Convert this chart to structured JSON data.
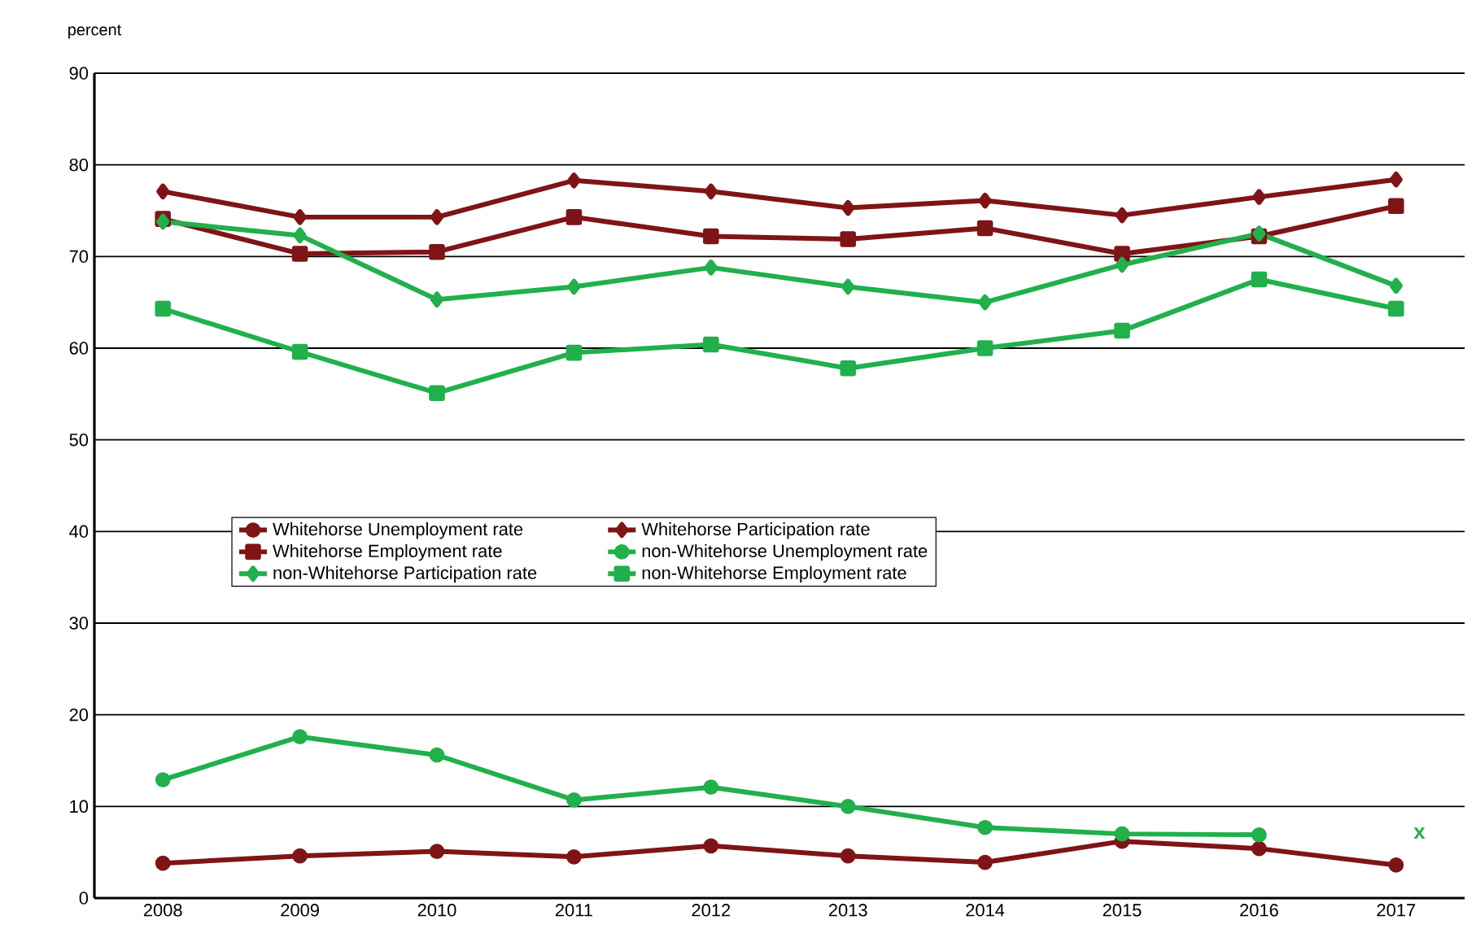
{
  "chart_data": {
    "type": "line",
    "ylabel": "percent",
    "categories": [
      "2008",
      "2009",
      "2010",
      "2011",
      "2012",
      "2013",
      "2014",
      "2015",
      "2016",
      "2017"
    ],
    "series": [
      {
        "name": "Whitehorse Unemployment rate",
        "color": "#7f1416",
        "marker": "circle",
        "values": [
          3.8,
          4.6,
          5.1,
          4.5,
          5.7,
          4.6,
          3.9,
          6.2,
          5.4,
          3.6
        ]
      },
      {
        "name": "Whitehorse Participation rate",
        "color": "#7f1416",
        "marker": "diamond",
        "values": [
          77.1,
          74.3,
          74.3,
          78.3,
          77.1,
          75.3,
          76.1,
          74.5,
          76.5,
          78.4
        ]
      },
      {
        "name": "Whitehorse Employment rate",
        "color": "#7f1416",
        "marker": "square",
        "values": [
          74.1,
          70.3,
          70.5,
          74.3,
          72.2,
          71.9,
          73.1,
          70.3,
          72.2,
          75.5
        ]
      },
      {
        "name": "non-Whitehorse Unemployment rate",
        "color": "#21b04b",
        "marker": "circle",
        "values": [
          12.9,
          17.6,
          15.6,
          10.7,
          12.1,
          10.0,
          7.7,
          7.0,
          6.9,
          null
        ]
      },
      {
        "name": "non-Whitehorse Participation rate",
        "color": "#21b04b",
        "marker": "diamond",
        "values": [
          73.8,
          72.3,
          65.3,
          66.7,
          68.8,
          66.7,
          65.0,
          69.1,
          72.5,
          66.8
        ]
      },
      {
        "name": "non-Whitehorse Employment rate",
        "color": "#21b04b",
        "marker": "square",
        "values": [
          64.3,
          59.6,
          55.1,
          59.5,
          60.4,
          57.8,
          60.0,
          61.9,
          67.5,
          64.3
        ]
      }
    ],
    "annotations": [
      "x"
    ],
    "ylim": [
      0,
      90
    ],
    "yticks": [
      0,
      10,
      20,
      30,
      40,
      50,
      60,
      70,
      80,
      90
    ],
    "grid": "y",
    "legend": "center",
    "line_style": "solid"
  }
}
